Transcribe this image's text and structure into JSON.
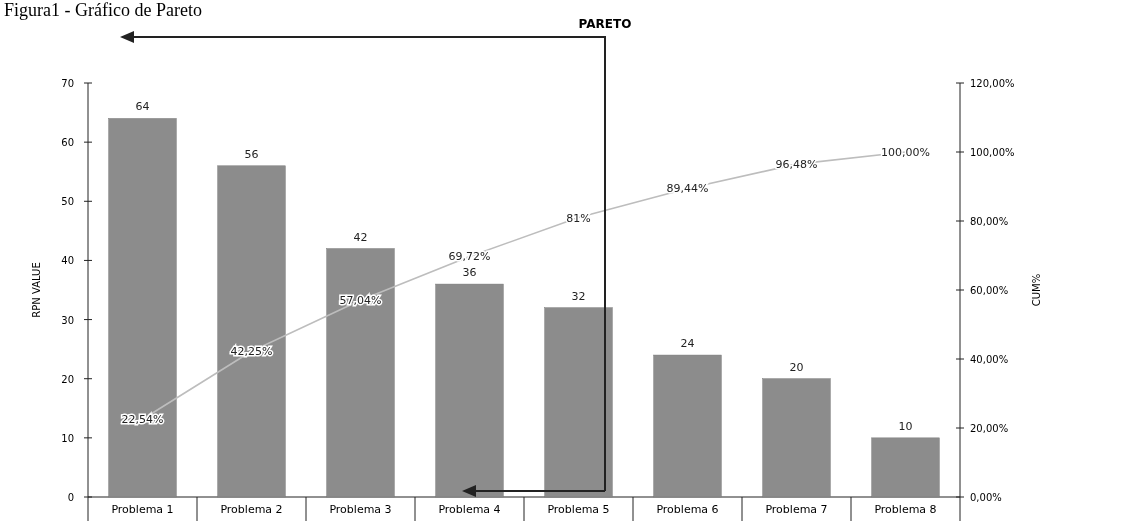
{
  "chart_data": {
    "type": "bar",
    "title": "Figura1 - Gráfico de Pareto",
    "ylabel": "RPN VALUE",
    "y2label": "CUM%",
    "categories": [
      "Problema 1",
      "Problema 2",
      "Problema 3",
      "Problema 4",
      "Problema 5",
      "Problema 6",
      "Problema 7",
      "Problema 8"
    ],
    "series": [
      {
        "color": "#8c8c8c",
        "values": [
          64,
          56,
          42,
          36,
          32,
          24,
          20,
          10
        ]
      },
      {
        "type": "line",
        "axis": "y2",
        "color": "#bdbdbd",
        "values": [
          22.54,
          42.25,
          57.04,
          69.72,
          80.99,
          89.44,
          96.48,
          100
        ],
        "value_labels": [
          "22,54%",
          "42,25%",
          "57,04%",
          "69,72%",
          "81%",
          "89,44%",
          "96,48%",
          "100,00%"
        ]
      }
    ],
    "data_labels": true,
    "ylim": [
      0,
      70
    ],
    "yticks": [
      0,
      10,
      20,
      30,
      40,
      50,
      60,
      70
    ],
    "y2lim": [
      0,
      120
    ],
    "y2ticks": [
      {
        "value": 0,
        "label": "0,00%"
      },
      {
        "value": 20,
        "label": "20,00%"
      },
      {
        "value": 40,
        "label": "40,00%"
      },
      {
        "value": 60,
        "label": "60,00%"
      },
      {
        "value": 80,
        "label": "80,00%"
      },
      {
        "value": 100,
        "label": "100,00%"
      },
      {
        "value": 120,
        "label": "120,00%"
      }
    ],
    "grid": false,
    "annotations": [
      "PARETO"
    ]
  }
}
